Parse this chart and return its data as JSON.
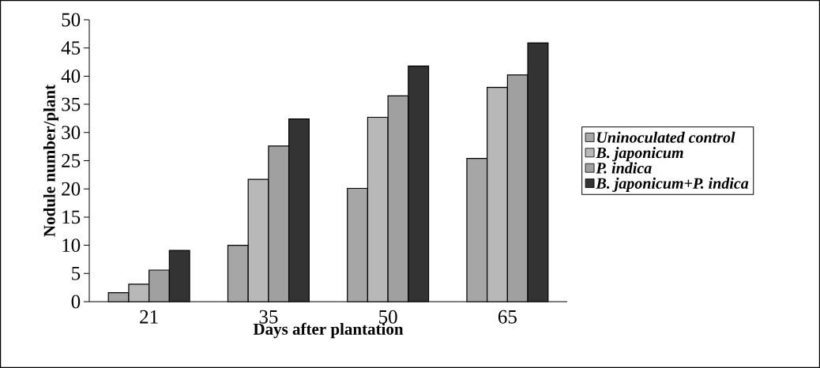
{
  "chart_data": {
    "type": "bar",
    "xlabel": "Days after plantation",
    "ylabel": "Nodule number/plant",
    "categories": [
      "21",
      "35",
      "50",
      "65"
    ],
    "series": [
      {
        "name": "Uninoculated control",
        "color": "#a6a6a6",
        "values": [
          1.6,
          10.0,
          20.1,
          25.4
        ]
      },
      {
        "name": "B. japonicum",
        "color": "#b8b8b8",
        "values": [
          3.1,
          21.7,
          32.7,
          38.0
        ]
      },
      {
        "name": "P. indica",
        "color": "#a0a0a0",
        "values": [
          5.6,
          27.6,
          36.5,
          40.2
        ]
      },
      {
        "name": "B. japonicum+P. indica",
        "color": "#333333",
        "values": [
          9.1,
          32.4,
          41.8,
          45.9
        ]
      }
    ],
    "ylim": [
      0,
      50
    ],
    "yticks": [
      0,
      5,
      10,
      15,
      20,
      25,
      30,
      35,
      40,
      45,
      50
    ],
    "grid": false,
    "legend": "right"
  }
}
